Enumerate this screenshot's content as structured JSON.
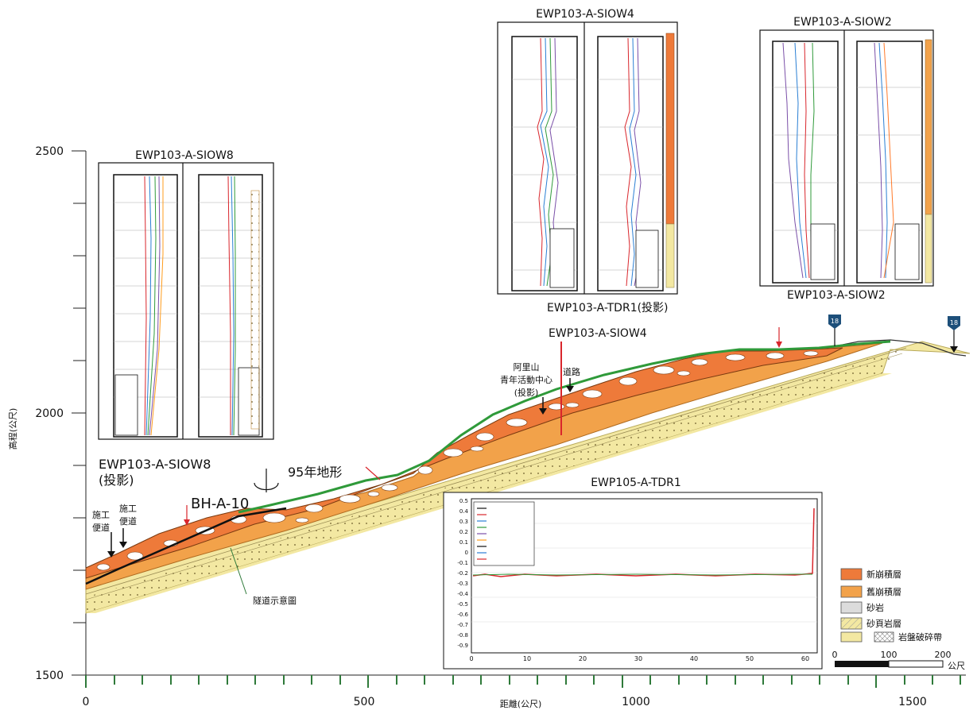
{
  "axes": {
    "y_label": "高程(公尺)",
    "x_label": "距離(公尺)",
    "y_ticks": [
      "2500",
      "2000",
      "1500"
    ],
    "x_ticks": [
      "0",
      "500",
      "1000",
      "1500"
    ],
    "y_range": [
      1500,
      2500
    ],
    "x_range": [
      0,
      1600
    ]
  },
  "inclinometer_panels": [
    {
      "title": "EWP103-A-SIOW8"
    },
    {
      "title": "EWP103-A-SIOW4"
    },
    {
      "title": "EWP103-A-SIOW2"
    }
  ],
  "tdr_panel": {
    "title": "EWP105-A-TDR1",
    "y_ticks": [
      "0.5",
      "0.4",
      "0.3",
      "0.2",
      "0.1",
      "0",
      "-0.1",
      "-0.2",
      "-0.3",
      "-0.4",
      "-0.5",
      "-0.6",
      "-0.7",
      "-0.8",
      "-0.9"
    ],
    "x_ticks": [
      "0",
      "10",
      "20",
      "30",
      "40",
      "50",
      "60"
    ]
  },
  "section_labels": {
    "siow8": "EWP103-A-SIOW8",
    "siow8_note": "(投影)",
    "bha10": "BH-A-10",
    "terrain95": "95年地形",
    "tdr1": "EWP103-A-TDR1(投影)",
    "siow4": "EWP103-A-SIOW4",
    "siow2": "EWP103-A-SIOW2",
    "alishan_1": "阿里山",
    "alishan_2": "青年活動中心",
    "alishan_3": "(投影)",
    "road": "道路",
    "work_road_a_1": "施工",
    "work_road_a_2": "便道",
    "work_road_b_1": "施工",
    "work_road_b_2": "便道",
    "tunnel": "隧道示意圖",
    "marker_left": "18",
    "marker_right": "18"
  },
  "legend": [
    {
      "label": "新崩積層",
      "color": "#ee7a3a"
    },
    {
      "label": "舊崩積層",
      "color": "#f2a24a"
    },
    {
      "label": "砂岩",
      "color": "#dcdcdc"
    },
    {
      "label": "砂頁岩層",
      "color": "#f3e8a2"
    },
    {
      "label": "岩盤破碎帶",
      "color": "#c9c9c9"
    }
  ],
  "scale_bar": {
    "ticks": [
      "0",
      "100",
      "200"
    ],
    "unit": "公尺"
  }
}
